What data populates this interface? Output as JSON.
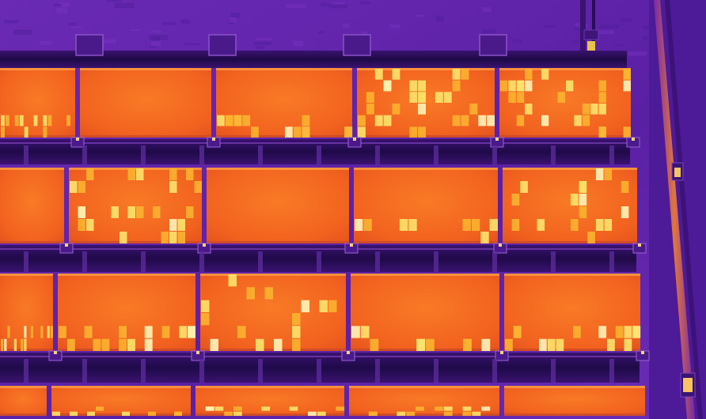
{
  "image": {
    "kind": "thermal-infrared-aerial",
    "palette": [
      "#3a0f7a",
      "#5a1fa8",
      "#8a2bb0",
      "#c2306e",
      "#f0602a",
      "#f88a22",
      "#fdbb30",
      "#fde27a",
      "#fff6c8"
    ],
    "colors": {
      "background": "#5a22a6",
      "rack": "#2a0f5a",
      "panel": "#f46a22",
      "panel_warm": "#fbb330",
      "hotspot": "#fde36c",
      "hotspot_peak": "#fff4b8",
      "pole": "#e06a3a"
    }
  },
  "panel_rows": 4,
  "panels_per_row": 5,
  "hotspot_panels": [
    {
      "row": 1,
      "panel": 1,
      "intensity": 0.35
    },
    {
      "row": 1,
      "panel": 3,
      "intensity": 0.45
    },
    {
      "row": 1,
      "panel": 4,
      "intensity": 0.95
    },
    {
      "row": 1,
      "panel": 5,
      "intensity": 0.9
    },
    {
      "row": 2,
      "panel": 2,
      "intensity": 0.8
    },
    {
      "row": 2,
      "panel": 4,
      "intensity": 0.25
    },
    {
      "row": 2,
      "panel": 5,
      "intensity": 0.55
    },
    {
      "row": 3,
      "panel": 1,
      "intensity": 0.35
    },
    {
      "row": 3,
      "panel": 2,
      "intensity": 0.45
    },
    {
      "row": 3,
      "panel": 3,
      "intensity": 0.5
    },
    {
      "row": 3,
      "panel": 4,
      "intensity": 0.3
    },
    {
      "row": 3,
      "panel": 5,
      "intensity": 0.45
    },
    {
      "row": 4,
      "panel": 2,
      "intensity": 0.25
    },
    {
      "row": 4,
      "panel": 3,
      "intensity": 0.35
    },
    {
      "row": 4,
      "panel": 4,
      "intensity": 0.4
    }
  ]
}
